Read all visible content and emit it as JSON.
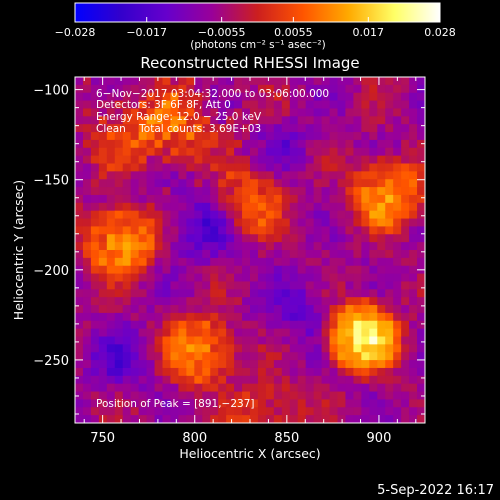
{
  "colorbar": {
    "ticks": [
      "−0.028",
      "−0.017",
      "−0.0055",
      "0.0055",
      "0.017",
      "0.028"
    ],
    "tick_values": [
      -0.028,
      -0.017,
      -0.0055,
      0.0055,
      0.017,
      0.028
    ],
    "range": [
      -0.028,
      0.028
    ],
    "units": "(photons cm⁻² s⁻¹ asec⁻²)",
    "colors": [
      "#0000ff",
      "#3300cc",
      "#6600cc",
      "#990099",
      "#cc1f1f",
      "#ff5500",
      "#ffaa00",
      "#ffff66",
      "#ffffff"
    ]
  },
  "footer": {
    "date": "5-Sep-2022 16:17"
  },
  "chart_data": {
    "type": "heatmap",
    "title": "Reconstructed RHESSI Image",
    "xlabel": "Heliocentric X (arcsec)",
    "ylabel": "Heliocentric Y (arcsec)",
    "xlim": [
      735,
      925
    ],
    "ylim": [
      -285,
      -93
    ],
    "xticks": [
      750,
      800,
      850,
      900
    ],
    "yticks": [
      -100,
      -150,
      -200,
      -250
    ],
    "xtick_labels": [
      "750",
      "800",
      "850",
      "900"
    ],
    "ytick_labels": [
      "−100",
      "−150",
      "−200",
      "−250"
    ],
    "colormap": "blue-purple-red-yellow-white",
    "value_range": [
      -0.028,
      0.028
    ],
    "annotations": [
      "6−Nov−2017 03:04:32.000 to 03:06:00.000",
      "Detectors: 3F 6F 8F, Att 0",
      "Energy Range: 12.0 − 25.0 keV",
      "Clean    Total counts: 3.69E+03"
    ],
    "peak_label": "Position of Peak = [891,−237]",
    "peak": [
      891,
      -237
    ],
    "sources": [
      {
        "x": 891,
        "y": -237,
        "peak": 0.028
      },
      {
        "x": 760,
        "y": -185,
        "peak": 0.021
      },
      {
        "x": 802,
        "y": -245,
        "peak": 0.018
      },
      {
        "x": 904,
        "y": -158,
        "peak": 0.019
      },
      {
        "x": 830,
        "y": -162,
        "peak": 0.013
      },
      {
        "x": 789,
        "y": -122,
        "peak": 0.011
      },
      {
        "x": 760,
        "y": -125,
        "peak": 0.008
      },
      {
        "x": 838,
        "y": -280,
        "peak": 0.01
      }
    ]
  }
}
